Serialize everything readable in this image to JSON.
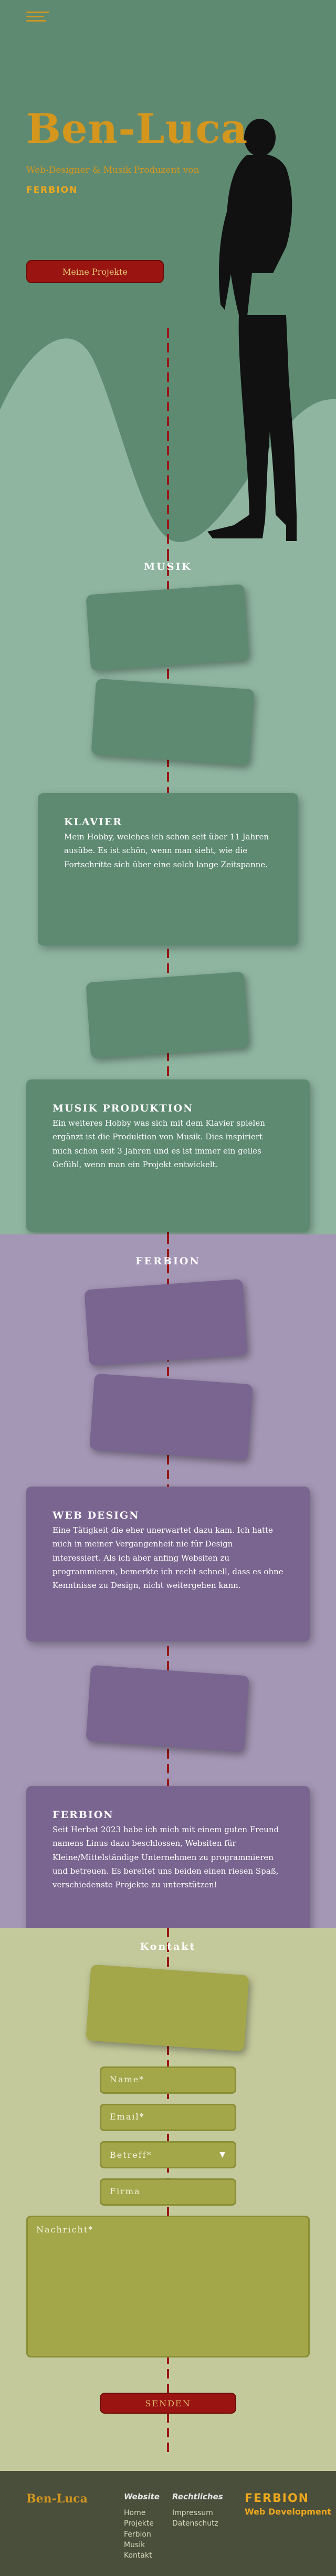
{
  "hero": {
    "title": "Ben-Luca",
    "subtitle": "Web-Designer & Musik Produzent von",
    "logo": "FERBION",
    "button": "Meine Projekte"
  },
  "musik": {
    "heading": "MUSIK",
    "cards": [
      {
        "title": "KLAVIER",
        "text": "Mein Hobby, welches ich schon seit über 11 Jahren ausübe. Es ist schön, wenn man sieht, wie die Fortschritte sich über eine solch lange Zeitspanne."
      },
      {
        "title": "MUSIK PRODUKTION",
        "text": "Ein weiteres Hobby was sich mit dem Klavier spielen ergänzt ist die Produktion von Musik. Dies inspiriert mich schon seit 3 Jahren und es ist immer ein geiles Gefühl, wenn man ein Projekt entwickelt."
      }
    ]
  },
  "ferbion": {
    "heading": "FERBION",
    "cards": [
      {
        "title": "WEB DESIGN",
        "text": "Eine Tätigkeit die eher unerwartet dazu kam. Ich hatte mich in meiner Vergangenheit nie für Design interessiert. Als ich aber anfing Websiten zu programmieren, bemerkte ich recht schnell, dass es ohne Kenntnisse zu Design, nicht weitergehen kann."
      },
      {
        "title": "FERBION",
        "text": "Seit Herbst 2023 habe ich mich mit einem guten Freund namens Linus dazu beschlossen, Websiten für Kleine/Mittelständige Unternehmen zu programmieren und betreuen. Es bereitet uns beiden einen riesen Spaß, verschiedenste Projekte zu unterstützen!"
      }
    ]
  },
  "kontakt": {
    "heading": "Kontakt",
    "name_placeholder": "Name*",
    "email_placeholder": "Email*",
    "subject_placeholder": "Betreff*",
    "company_placeholder": "Firma",
    "message_placeholder": "Nachricht*",
    "send": "SENDEN"
  },
  "footer": {
    "brand": "Ben-Luca",
    "col1_title": "Website",
    "col1_links": [
      "Home",
      "Projekte",
      "Ferbion",
      "Musik",
      "Kontakt"
    ],
    "col2_title": "Rechtliches",
    "col2_links": [
      "Impressum",
      "Datenschutz"
    ],
    "logo": "FERBION",
    "tagline": "Web Development"
  },
  "colors": {
    "accent": "#d4961d",
    "button": "#9a1512",
    "musik_card": "#5e8a72",
    "ferbion_card": "#7a6590",
    "kontakt_card": "#a3a74a"
  }
}
